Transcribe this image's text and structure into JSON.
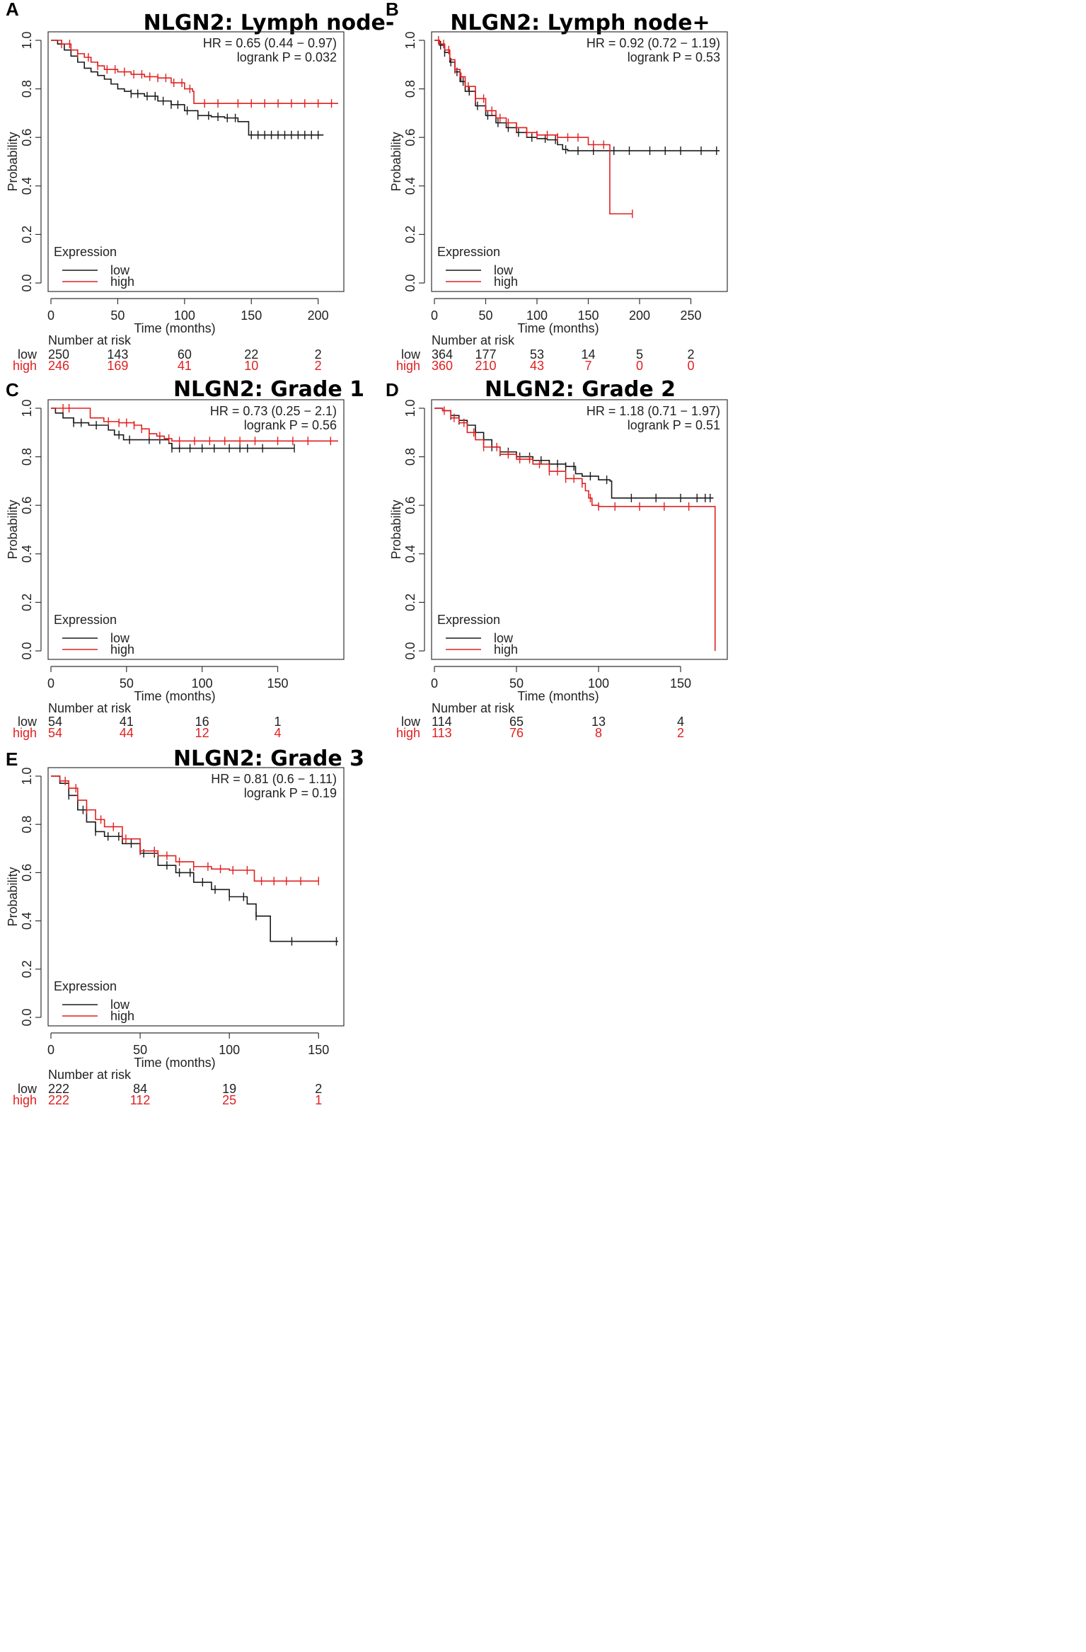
{
  "colors": {
    "low": "#1a1a1a",
    "high": "#e02020"
  },
  "chart_data": [
    {
      "panel": "A",
      "type": "line",
      "title": "NLGN2: Lymph node-",
      "xlabel": "Time (months)",
      "ylabel": "Probability",
      "xlim": [
        0,
        215
      ],
      "ylim": [
        0,
        1
      ],
      "xticks": [
        0,
        50,
        100,
        150,
        200
      ],
      "yticks": [
        0.0,
        0.2,
        0.4,
        0.6,
        0.8,
        1.0
      ],
      "hr_text": "HR = 0.65 (0.44 − 0.97)",
      "p_text": "logrank P = 0.032",
      "legend": {
        "title": "Expression",
        "low": "low",
        "high": "high"
      },
      "series": [
        {
          "name": "low",
          "x": [
            0,
            5,
            10,
            15,
            20,
            25,
            30,
            35,
            40,
            45,
            50,
            55,
            60,
            70,
            80,
            90,
            100,
            110,
            120,
            130,
            140,
            147,
            148,
            160,
            180,
            204
          ],
          "y": [
            1.0,
            0.985,
            0.96,
            0.935,
            0.91,
            0.885,
            0.87,
            0.855,
            0.84,
            0.82,
            0.8,
            0.79,
            0.78,
            0.77,
            0.75,
            0.735,
            0.71,
            0.69,
            0.685,
            0.68,
            0.665,
            0.665,
            0.61,
            0.61,
            0.61,
            0.61
          ],
          "censor": [
            60,
            65,
            72,
            78,
            84,
            90,
            95,
            102,
            110,
            118,
            125,
            132,
            138,
            150,
            155,
            160,
            165,
            170,
            175,
            180,
            185,
            190,
            195,
            200
          ]
        },
        {
          "name": "high",
          "x": [
            0,
            8,
            15,
            20,
            25,
            30,
            35,
            40,
            50,
            60,
            70,
            80,
            90,
            100,
            106,
            107,
            150,
            215
          ],
          "y": [
            1.0,
            0.985,
            0.96,
            0.945,
            0.93,
            0.91,
            0.895,
            0.88,
            0.87,
            0.86,
            0.85,
            0.845,
            0.825,
            0.8,
            0.79,
            0.74,
            0.74,
            0.74
          ],
          "censor": [
            8,
            14,
            20,
            28,
            35,
            42,
            48,
            55,
            62,
            68,
            74,
            80,
            86,
            92,
            98,
            104,
            115,
            125,
            140,
            150,
            160,
            170,
            180,
            190,
            200,
            210
          ]
        }
      ],
      "risk": {
        "header": "Number at risk",
        "times": [
          0,
          50,
          100,
          150,
          200
        ],
        "low": {
          "label": "low",
          "values": [
            "250",
            "143",
            "60",
            "22",
            "2"
          ]
        },
        "high": {
          "label": "high",
          "values": [
            "246",
            "169",
            "41",
            "10",
            "2"
          ]
        }
      }
    },
    {
      "panel": "B",
      "type": "line",
      "title": "NLGN2: Lymph node+",
      "xlabel": "Time (months)",
      "ylabel": "Probability",
      "xlim": [
        0,
        280
      ],
      "ylim": [
        0,
        1
      ],
      "xticks": [
        0,
        50,
        100,
        150,
        200,
        250
      ],
      "yticks": [
        0.0,
        0.2,
        0.4,
        0.6,
        0.8,
        1.0
      ],
      "hr_text": "HR = 0.92 (0.72 − 1.19)",
      "p_text": "logrank P = 0.53",
      "legend": {
        "title": "Expression",
        "low": "low",
        "high": "high"
      },
      "series": [
        {
          "name": "low",
          "x": [
            0,
            5,
            10,
            15,
            20,
            25,
            30,
            40,
            50,
            60,
            70,
            80,
            90,
            100,
            110,
            120,
            125,
            130,
            200,
            278
          ],
          "y": [
            1.0,
            0.98,
            0.95,
            0.91,
            0.87,
            0.83,
            0.79,
            0.73,
            0.69,
            0.66,
            0.64,
            0.62,
            0.6,
            0.595,
            0.59,
            0.57,
            0.55,
            0.545,
            0.545,
            0.545
          ],
          "censor": [
            6,
            10,
            16,
            22,
            28,
            34,
            42,
            52,
            62,
            72,
            82,
            95,
            108,
            118,
            128,
            140,
            155,
            175,
            190,
            210,
            225,
            240,
            260,
            275
          ]
        },
        {
          "name": "high",
          "x": [
            0,
            5,
            10,
            15,
            20,
            25,
            30,
            40,
            50,
            60,
            70,
            80,
            90,
            100,
            120,
            150,
            170,
            171,
            193
          ],
          "y": [
            1.0,
            0.985,
            0.96,
            0.92,
            0.88,
            0.85,
            0.81,
            0.76,
            0.71,
            0.68,
            0.66,
            0.64,
            0.62,
            0.61,
            0.6,
            0.57,
            0.57,
            0.285,
            0.285
          ],
          "censor": [
            4,
            9,
            14,
            20,
            26,
            33,
            40,
            48,
            56,
            64,
            72,
            80,
            90,
            100,
            110,
            120,
            130,
            140,
            155,
            165,
            193
          ]
        }
      ],
      "risk": {
        "header": "Number at risk",
        "times": [
          0,
          50,
          100,
          150,
          200,
          250
        ],
        "low": {
          "label": "low",
          "values": [
            "364",
            "177",
            "53",
            "14",
            "5",
            "2"
          ]
        },
        "high": {
          "label": "high",
          "values": [
            "360",
            "210",
            "43",
            "7",
            "0",
            "0"
          ]
        }
      }
    },
    {
      "panel": "C",
      "type": "line",
      "title": "NLGN2: Grade 1",
      "xlabel": "Time (months)",
      "ylabel": "Probability",
      "xlim": [
        0,
        190
      ],
      "ylim": [
        0,
        1
      ],
      "xticks": [
        0,
        50,
        100,
        150
      ],
      "yticks": [
        0.0,
        0.2,
        0.4,
        0.6,
        0.8,
        1.0
      ],
      "hr_text": "HR = 0.73 (0.25 − 2.1)",
      "p_text": "logrank P = 0.56",
      "legend": {
        "title": "Expression",
        "low": "low",
        "high": "high"
      },
      "series": [
        {
          "name": "low",
          "x": [
            0,
            3,
            8,
            15,
            25,
            38,
            42,
            48,
            52,
            78,
            80,
            161
          ],
          "y": [
            1.0,
            0.98,
            0.96,
            0.94,
            0.93,
            0.91,
            0.89,
            0.87,
            0.87,
            0.855,
            0.835,
            0.835
          ],
          "censor": [
            15,
            20,
            30,
            45,
            52,
            65,
            72,
            80,
            85,
            92,
            100,
            108,
            118,
            125,
            130,
            140,
            161
          ]
        },
        {
          "name": "high",
          "x": [
            0,
            25,
            26,
            35,
            45,
            50,
            55,
            60,
            65,
            70,
            75,
            80,
            190
          ],
          "y": [
            1.0,
            1.0,
            0.96,
            0.945,
            0.94,
            0.94,
            0.93,
            0.915,
            0.895,
            0.885,
            0.875,
            0.865,
            0.865
          ],
          "censor": [
            8,
            12,
            38,
            45,
            50,
            55,
            60,
            65,
            72,
            78,
            85,
            95,
            105,
            115,
            125,
            135,
            150,
            160,
            170,
            185
          ]
        }
      ],
      "risk": {
        "header": "Number at risk",
        "times": [
          0,
          50,
          100,
          150
        ],
        "low": {
          "label": "low",
          "values": [
            "54",
            "41",
            "16",
            "1"
          ]
        },
        "high": {
          "label": "high",
          "values": [
            "54",
            "44",
            "12",
            "4"
          ]
        }
      }
    },
    {
      "panel": "D",
      "type": "line",
      "title": "NLGN2: Grade 2",
      "xlabel": "Time (months)",
      "ylabel": "Probability",
      "xlim": [
        0,
        175
      ],
      "ylim": [
        0,
        1
      ],
      "xticks": [
        0,
        50,
        100,
        150
      ],
      "yticks": [
        0.0,
        0.2,
        0.4,
        0.6,
        0.8,
        1.0
      ],
      "hr_text": "HR = 1.18 (0.71 − 1.97)",
      "p_text": "logrank P = 0.51",
      "legend": {
        "title": "Expression",
        "low": "low",
        "high": "high"
      },
      "series": [
        {
          "name": "low",
          "x": [
            0,
            5,
            10,
            15,
            20,
            25,
            30,
            35,
            40,
            50,
            60,
            70,
            80,
            86,
            90,
            100,
            107,
            108,
            170
          ],
          "y": [
            1.0,
            0.99,
            0.97,
            0.95,
            0.93,
            0.9,
            0.87,
            0.84,
            0.82,
            0.8,
            0.785,
            0.77,
            0.76,
            0.73,
            0.72,
            0.705,
            0.7,
            0.63,
            0.63
          ],
          "censor": [
            10,
            15,
            20,
            25,
            30,
            35,
            40,
            45,
            52,
            58,
            65,
            70,
            75,
            80,
            85,
            95,
            105,
            120,
            135,
            150,
            160,
            165,
            168
          ]
        },
        {
          "name": "high",
          "x": [
            0,
            5,
            10,
            15,
            20,
            25,
            30,
            40,
            50,
            60,
            70,
            80,
            90,
            92,
            94,
            96,
            100,
            120,
            170,
            171
          ],
          "y": [
            1.0,
            0.99,
            0.96,
            0.94,
            0.9,
            0.87,
            0.84,
            0.81,
            0.79,
            0.77,
            0.74,
            0.71,
            0.69,
            0.66,
            0.63,
            0.6,
            0.595,
            0.595,
            0.595,
            0.0
          ],
          "censor": [
            6,
            12,
            18,
            24,
            30,
            38,
            45,
            52,
            58,
            64,
            70,
            75,
            80,
            85,
            90,
            95,
            100,
            110,
            125,
            140,
            155
          ]
        }
      ],
      "risk": {
        "header": "Number at risk",
        "times": [
          0,
          50,
          100,
          150
        ],
        "low": {
          "label": "low",
          "values": [
            "114",
            "65",
            "13",
            "4"
          ]
        },
        "high": {
          "label": "high",
          "values": [
            "113",
            "76",
            "8",
            "2"
          ]
        }
      }
    },
    {
      "panel": "E",
      "type": "line",
      "title": "NLGN2: Grade 3",
      "xlabel": "Time (months)",
      "ylabel": "Probability",
      "xlim": [
        0,
        161
      ],
      "ylim": [
        0,
        1
      ],
      "xticks": [
        0,
        50,
        100,
        150
      ],
      "yticks": [
        0.0,
        0.2,
        0.4,
        0.6,
        0.8,
        1.0
      ],
      "hr_text": "HR = 0.81 (0.6 − 1.11)",
      "p_text": "logrank P = 0.19",
      "legend": {
        "title": "Expression",
        "low": "low",
        "high": "high"
      },
      "series": [
        {
          "name": "low",
          "x": [
            0,
            5,
            10,
            15,
            20,
            25,
            30,
            40,
            50,
            60,
            70,
            80,
            90,
            100,
            110,
            115,
            122,
            123,
            161
          ],
          "y": [
            1.0,
            0.97,
            0.92,
            0.86,
            0.81,
            0.77,
            0.75,
            0.72,
            0.68,
            0.63,
            0.6,
            0.56,
            0.53,
            0.5,
            0.47,
            0.42,
            0.42,
            0.315,
            0.315
          ],
          "censor": [
            10,
            18,
            25,
            32,
            38,
            45,
            52,
            58,
            65,
            72,
            78,
            85,
            92,
            100,
            108,
            115,
            135,
            160
          ]
        },
        {
          "name": "high",
          "x": [
            0,
            5,
            10,
            15,
            20,
            25,
            30,
            40,
            50,
            60,
            70,
            80,
            90,
            100,
            113,
            114,
            150
          ],
          "y": [
            1.0,
            0.98,
            0.95,
            0.9,
            0.86,
            0.82,
            0.79,
            0.74,
            0.69,
            0.67,
            0.645,
            0.625,
            0.615,
            0.61,
            0.61,
            0.565,
            0.565
          ],
          "censor": [
            8,
            14,
            20,
            28,
            35,
            42,
            50,
            58,
            65,
            72,
            80,
            88,
            95,
            102,
            110,
            118,
            125,
            132,
            140,
            150
          ]
        }
      ],
      "risk": {
        "header": "Number at risk",
        "times": [
          0,
          50,
          100,
          150
        ],
        "low": {
          "label": "low",
          "values": [
            "222",
            "84",
            "19",
            "2"
          ]
        },
        "high": {
          "label": "high",
          "values": [
            "222",
            "112",
            "25",
            "1"
          ]
        }
      }
    }
  ]
}
